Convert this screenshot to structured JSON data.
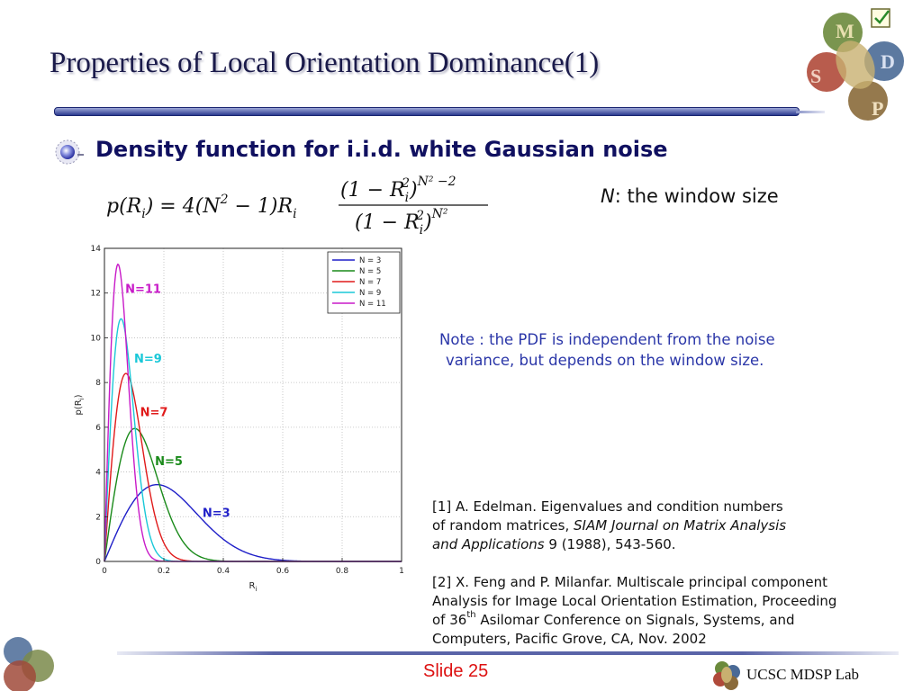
{
  "slide": {
    "title": "Properties of Local Orientation Dominance(1)",
    "bullet_heading": "Density function for i.i.d. white Gaussian noise",
    "window_size_var": "N",
    "window_size_text": ": the window size",
    "note_line1": "Note : the PDF is independent from the noise",
    "note_line2": "variance, but depends on the window size.",
    "ref1_text1": "[1] A. Edelman. Eigenvalues and condition numbers",
    "ref1_text2": "of random matrices, ",
    "ref1_journal1": "SIAM Journal on Matrix Analysis",
    "ref1_journal2": "and Applications",
    "ref1_text3": " 9 (1988), 543-560.",
    "ref2_line1": "[2] X. Feng and P. Milanfar. Multiscale principal component",
    "ref2_line2": "Analysis for Image Local Orientation Estimation, Proceeding",
    "ref2_line3a": "of 36",
    "ref2_sup": "th",
    "ref2_line3b": " Asilomar Conference on Signals, Systems, and",
    "ref2_line4": "Computers, Pacific Grove, CA, Nov. 2002",
    "slide_number": "Slide 25",
    "lab_name": "UCSC MDSP Lab",
    "logo_letters": [
      "M",
      "D",
      "S",
      "P"
    ]
  },
  "formula": {
    "lhs": "p(R",
    "lhs_sub": "i",
    "lhs_close": ") = 4(N",
    "lhs_exp": "2",
    "lhs_tail": " − 1)R",
    "lhs_tail_sub": "i",
    "numerator": "(1 − R",
    "numerator_sub": "i",
    "numerator_sup": "2",
    "numerator_close": ")",
    "numerator_exp": "N² −2",
    "denominator": "(1 − R",
    "denominator_sub": "i",
    "denominator_sup": "2",
    "denominator_close": ")",
    "denominator_exp": "N²"
  },
  "chart_data": {
    "type": "line",
    "xlabel": "R",
    "xlabel_sub": "i",
    "ylabel": "p(R",
    "ylabel_sub": "i",
    "ylabel_close": ")",
    "xlim": [
      0,
      1
    ],
    "ylim": [
      0,
      14
    ],
    "xticks": [
      0,
      0.2,
      0.4,
      0.6,
      0.8,
      1
    ],
    "xtick_labels": [
      "0",
      "0.2",
      "0.4",
      "0.6",
      "0.8",
      "1"
    ],
    "yticks": [
      0,
      2,
      4,
      6,
      8,
      10,
      12,
      14
    ],
    "ytick_labels": [
      "0",
      "2",
      "4",
      "6",
      "8",
      "10",
      "12",
      "14"
    ],
    "grid": true,
    "legend_position": "top-right",
    "series": [
      {
        "name": "N = 3",
        "N": 3,
        "color": "#1f1fc8",
        "annotation": "N=3",
        "annotation_x": 0.33,
        "annotation_y": 2.0
      },
      {
        "name": "N = 5",
        "N": 5,
        "color": "#1a8a1a",
        "annotation": "N=5",
        "annotation_x": 0.17,
        "annotation_y": 4.3
      },
      {
        "name": "N = 7",
        "N": 7,
        "color": "#e01a1a",
        "annotation": "N=7",
        "annotation_x": 0.12,
        "annotation_y": 6.5
      },
      {
        "name": "N = 9",
        "N": 9,
        "color": "#1ac8d8",
        "annotation": "N=9",
        "annotation_x": 0.1,
        "annotation_y": 8.9
      },
      {
        "name": "N = 11",
        "N": 11,
        "color": "#c81ac8",
        "annotation": "N=11",
        "annotation_x": 0.07,
        "annotation_y": 12.0
      }
    ]
  }
}
